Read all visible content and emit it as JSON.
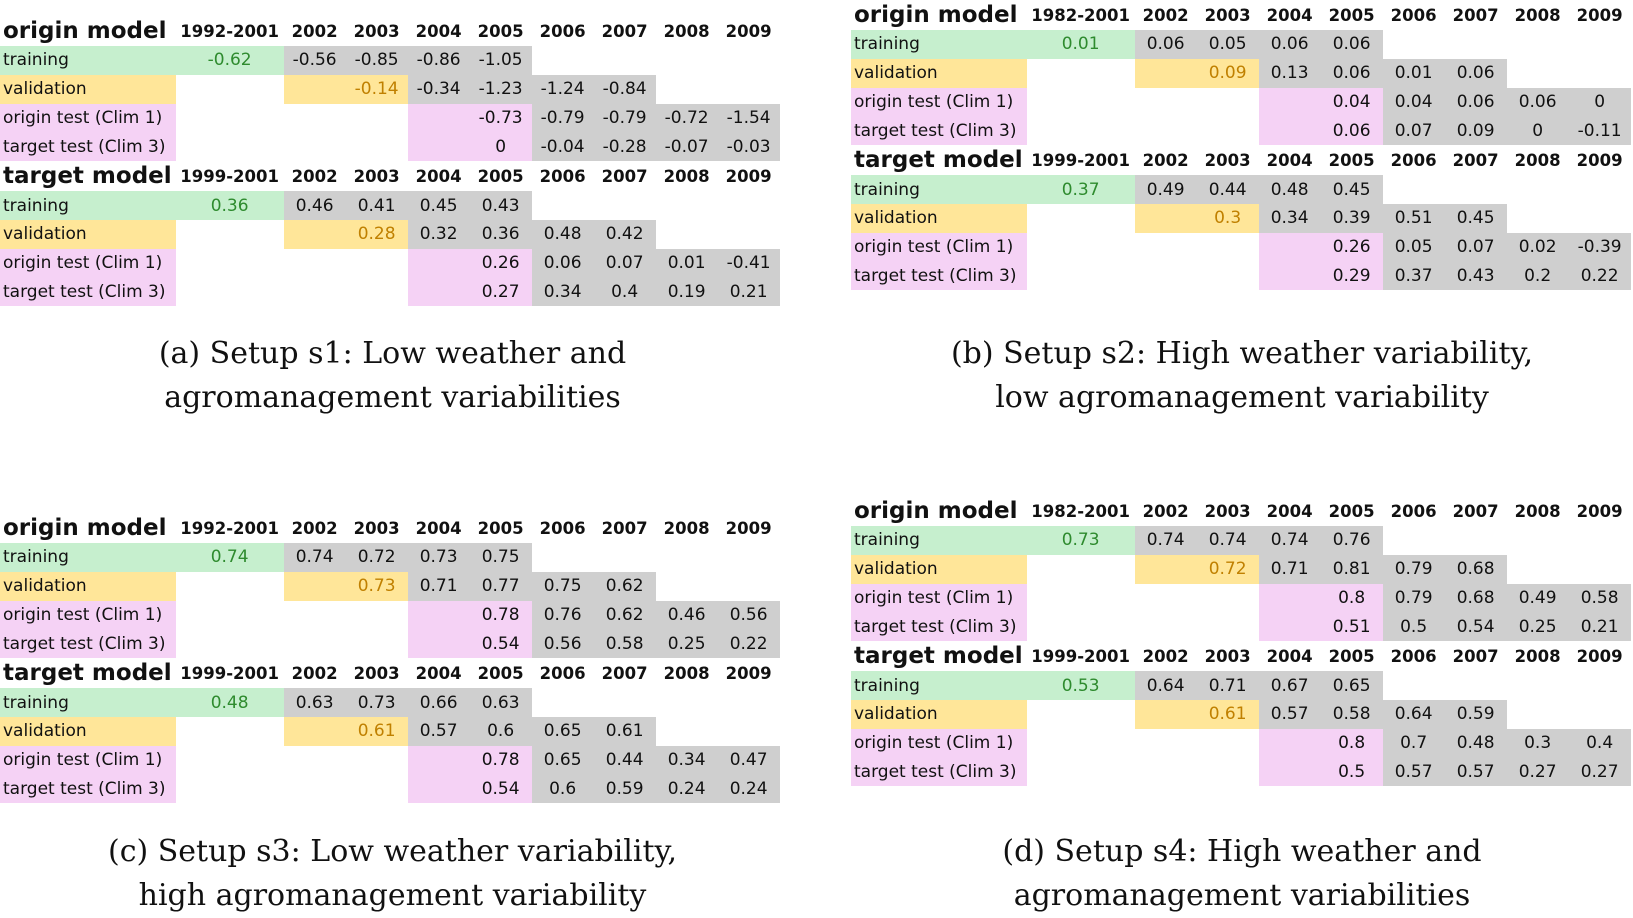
{
  "panels": [
    {
      "id": "a",
      "caption_line1": "(a) Setup s1: Low weather and",
      "caption_line2": "agromanagement variabilities",
      "blocks": [
        {
          "title": "origin model",
          "headers": [
            "1992-2001",
            "2002",
            "2003",
            "2004",
            "2005",
            "2006",
            "2007",
            "2008",
            "2009"
          ],
          "rows": [
            {
              "label": "training",
              "values": [
                "-0.62",
                "-0.56",
                "-0.85",
                "-0.86",
                "-1.05",
                "",
                "",
                "",
                ""
              ]
            },
            {
              "label": "validation",
              "values": [
                "",
                "",
                "-0.14",
                "-0.34",
                "-1.23",
                "-1.24",
                "-0.84",
                "",
                ""
              ]
            },
            {
              "label": "origin test (Clim 1)",
              "values": [
                "",
                "",
                "",
                "",
                "-0.73",
                "-0.79",
                "-0.79",
                "-0.72",
                "-1.54"
              ]
            },
            {
              "label": "target test (Clim 3)",
              "values": [
                "",
                "",
                "",
                "",
                "0",
                "-0.04",
                "-0.28",
                "-0.07",
                "-0.03"
              ]
            }
          ]
        },
        {
          "title": "target model",
          "headers": [
            "1999-2001",
            "2002",
            "2003",
            "2004",
            "2005",
            "2006",
            "2007",
            "2008",
            "2009"
          ],
          "rows": [
            {
              "label": "training",
              "values": [
                "0.36",
                "0.46",
                "0.41",
                "0.45",
                "0.43",
                "",
                "",
                "",
                ""
              ]
            },
            {
              "label": "validation",
              "values": [
                "",
                "",
                "0.28",
                "0.32",
                "0.36",
                "0.48",
                "0.42",
                "",
                ""
              ]
            },
            {
              "label": "origin test (Clim 1)",
              "values": [
                "",
                "",
                "",
                "",
                "0.26",
                "0.06",
                "0.07",
                "0.01",
                "-0.41"
              ]
            },
            {
              "label": "target test (Clim 3)",
              "values": [
                "",
                "",
                "",
                "",
                "0.27",
                "0.34",
                "0.4",
                "0.19",
                "0.21"
              ]
            }
          ]
        }
      ]
    },
    {
      "id": "b",
      "caption_line1": "(b) Setup s2: High weather variability,",
      "caption_line2": "low agromanagement variability",
      "blocks": [
        {
          "title": "origin model",
          "headers": [
            "1982-2001",
            "2002",
            "2003",
            "2004",
            "2005",
            "2006",
            "2007",
            "2008",
            "2009"
          ],
          "rows": [
            {
              "label": "training",
              "values": [
                "0.01",
                "0.06",
                "0.05",
                "0.06",
                "0.06",
                "",
                "",
                "",
                ""
              ]
            },
            {
              "label": "validation",
              "values": [
                "",
                "",
                "0.09",
                "0.13",
                "0.06",
                "0.01",
                "0.06",
                "",
                ""
              ]
            },
            {
              "label": "origin test (Clim 1)",
              "values": [
                "",
                "",
                "",
                "",
                "0.04",
                "0.04",
                "0.06",
                "0.06",
                "0"
              ]
            },
            {
              "label": "target test (Clim 3)",
              "values": [
                "",
                "",
                "",
                "",
                "0.06",
                "0.07",
                "0.09",
                "0",
                "-0.11"
              ]
            }
          ]
        },
        {
          "title": "target model",
          "headers": [
            "1999-2001",
            "2002",
            "2003",
            "2004",
            "2005",
            "2006",
            "2007",
            "2008",
            "2009"
          ],
          "rows": [
            {
              "label": "training",
              "values": [
                "0.37",
                "0.49",
                "0.44",
                "0.48",
                "0.45",
                "",
                "",
                "",
                ""
              ]
            },
            {
              "label": "validation",
              "values": [
                "",
                "",
                "0.3",
                "0.34",
                "0.39",
                "0.51",
                "0.45",
                "",
                ""
              ]
            },
            {
              "label": "origin test (Clim 1)",
              "values": [
                "",
                "",
                "",
                "",
                "0.26",
                "0.05",
                "0.07",
                "0.02",
                "-0.39"
              ]
            },
            {
              "label": "target test (Clim 3)",
              "values": [
                "",
                "",
                "",
                "",
                "0.29",
                "0.37",
                "0.43",
                "0.2",
                "0.22"
              ]
            }
          ]
        }
      ]
    },
    {
      "id": "c",
      "caption_line1": "(c) Setup s3: Low weather variability,",
      "caption_line2": "high agromanagement variability",
      "blocks": [
        {
          "title": "origin model",
          "headers": [
            "1992-2001",
            "2002",
            "2003",
            "2004",
            "2005",
            "2006",
            "2007",
            "2008",
            "2009"
          ],
          "rows": [
            {
              "label": "training",
              "values": [
                "0.74",
                "0.74",
                "0.72",
                "0.73",
                "0.75",
                "",
                "",
                "",
                ""
              ]
            },
            {
              "label": "validation",
              "values": [
                "",
                "",
                "0.73",
                "0.71",
                "0.77",
                "0.75",
                "0.62",
                "",
                ""
              ]
            },
            {
              "label": "origin test (Clim 1)",
              "values": [
                "",
                "",
                "",
                "",
                "0.78",
                "0.76",
                "0.62",
                "0.46",
                "0.56"
              ]
            },
            {
              "label": "target test (Clim 3)",
              "values": [
                "",
                "",
                "",
                "",
                "0.54",
                "0.56",
                "0.58",
                "0.25",
                "0.22"
              ]
            }
          ]
        },
        {
          "title": "target model",
          "headers": [
            "1999-2001",
            "2002",
            "2003",
            "2004",
            "2005",
            "2006",
            "2007",
            "2008",
            "2009"
          ],
          "rows": [
            {
              "label": "training",
              "values": [
                "0.48",
                "0.63",
                "0.73",
                "0.66",
                "0.63",
                "",
                "",
                "",
                ""
              ]
            },
            {
              "label": "validation",
              "values": [
                "",
                "",
                "0.61",
                "0.57",
                "0.6",
                "0.65",
                "0.61",
                "",
                ""
              ]
            },
            {
              "label": "origin test (Clim 1)",
              "values": [
                "",
                "",
                "",
                "",
                "0.78",
                "0.65",
                "0.44",
                "0.34",
                "0.47"
              ]
            },
            {
              "label": "target test (Clim 3)",
              "values": [
                "",
                "",
                "",
                "",
                "0.54",
                "0.6",
                "0.59",
                "0.24",
                "0.24"
              ]
            }
          ]
        }
      ]
    },
    {
      "id": "d",
      "caption_line1": "(d) Setup s4: High weather and",
      "caption_line2": "agromanagement variabilities",
      "blocks": [
        {
          "title": "origin model",
          "headers": [
            "1982-2001",
            "2002",
            "2003",
            "2004",
            "2005",
            "2006",
            "2007",
            "2008",
            "2009"
          ],
          "rows": [
            {
              "label": "training",
              "values": [
                "0.73",
                "0.74",
                "0.74",
                "0.74",
                "0.76",
                "",
                "",
                "",
                ""
              ]
            },
            {
              "label": "validation",
              "values": [
                "",
                "",
                "0.72",
                "0.71",
                "0.81",
                "0.79",
                "0.68",
                "",
                ""
              ]
            },
            {
              "label": "origin test (Clim 1)",
              "values": [
                "",
                "",
                "",
                "",
                "0.8",
                "0.79",
                "0.68",
                "0.49",
                "0.58"
              ]
            },
            {
              "label": "target test (Clim 3)",
              "values": [
                "",
                "",
                "",
                "",
                "0.51",
                "0.5",
                "0.54",
                "0.25",
                "0.21"
              ]
            }
          ]
        },
        {
          "title": "target model",
          "headers": [
            "1999-2001",
            "2002",
            "2003",
            "2004",
            "2005",
            "2006",
            "2007",
            "2008",
            "2009"
          ],
          "rows": [
            {
              "label": "training",
              "values": [
                "0.53",
                "0.64",
                "0.71",
                "0.67",
                "0.65",
                "",
                "",
                "",
                ""
              ]
            },
            {
              "label": "validation",
              "values": [
                "",
                "",
                "0.61",
                "0.57",
                "0.58",
                "0.64",
                "0.59",
                "",
                ""
              ]
            },
            {
              "label": "origin test (Clim 1)",
              "values": [
                "",
                "",
                "",
                "",
                "0.8",
                "0.7",
                "0.48",
                "0.3",
                "0.4"
              ]
            },
            {
              "label": "target test (Clim 3)",
              "values": [
                "",
                "",
                "",
                "",
                "0.5",
                "0.57",
                "0.57",
                "0.27",
                "0.27"
              ]
            }
          ]
        }
      ]
    }
  ],
  "colors": {
    "training_fill": "#c6efce",
    "validation_fill": "#ffe699",
    "test_fill": "#f5d2f5",
    "data_fill": "#cfcfcf",
    "training_text": "#2e8b2e",
    "validation_text": "#c08000"
  }
}
